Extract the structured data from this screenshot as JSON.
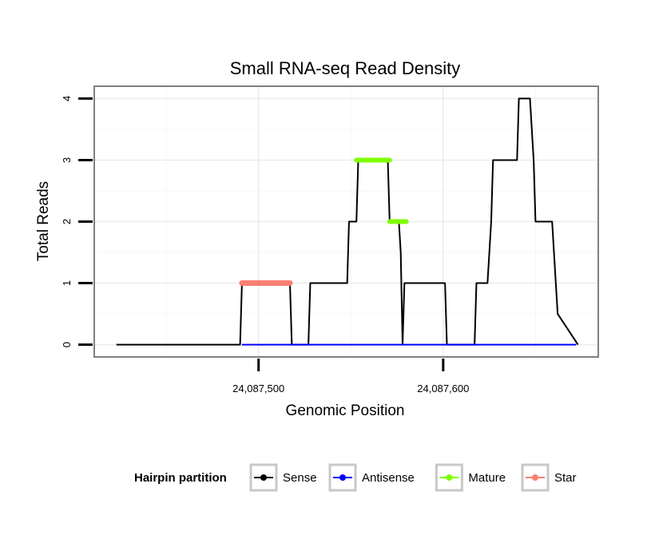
{
  "chart_data": {
    "type": "line",
    "title": "Small RNA-seq Read Density",
    "xlabel": "Genomic Position",
    "ylabel": "Total Reads",
    "xlim": [
      24087411,
      24087684
    ],
    "ylim": [
      -0.2,
      4.2
    ],
    "x_ticks": [
      24087500,
      24087600
    ],
    "x_tick_labels": [
      "24,087,500",
      "24,087,600"
    ],
    "y_ticks": [
      0,
      1,
      2,
      3,
      4
    ],
    "y_tick_labels": [
      "0",
      "1",
      "2",
      "3",
      "4"
    ],
    "grid": true,
    "legend": {
      "title": "Hairpin partition",
      "position": "bottom",
      "entries": [
        {
          "name": "Sense",
          "color": "#000000"
        },
        {
          "name": "Antisense",
          "color": "#0000ff"
        },
        {
          "name": "Mature",
          "color": "#7fff00"
        },
        {
          "name": "Star",
          "color": "#fa8072"
        }
      ]
    },
    "series": [
      {
        "name": "Sense",
        "color": "#000000",
        "width": 2,
        "x": [
          24087423,
          24087490,
          24087491,
          24087517,
          24087518,
          24087527,
          24087528,
          24087548,
          24087549,
          24087553,
          24087554,
          24087570,
          24087571,
          24087576,
          24087577,
          24087578,
          24087579,
          24087601,
          24087602,
          24087617,
          24087618,
          24087624,
          24087625,
          24087626,
          24087627,
          24087640,
          24087641,
          24087647,
          24087648,
          24087649,
          24087650,
          24087659,
          24087660,
          24087661,
          24087662,
          24087673
        ],
        "y": [
          0,
          0,
          1,
          1,
          0,
          0,
          1,
          1,
          2,
          2,
          3,
          3,
          2,
          2,
          1.5,
          0,
          1,
          1,
          0,
          0,
          1,
          1,
          1.5,
          2,
          3,
          3,
          4,
          4,
          3.5,
          3,
          2,
          2,
          1.5,
          1,
          0.5,
          0
        ]
      },
      {
        "name": "Antisense",
        "color": "#0000ff",
        "width": 2,
        "x": [
          24087491,
          24087672
        ],
        "y": [
          0,
          0
        ]
      },
      {
        "name": "Mature",
        "color": "#7fff00",
        "width": 6,
        "segments": [
          {
            "x": [
              24087553,
              24087571
            ],
            "y": [
              3,
              3
            ]
          },
          {
            "x": [
              24087571,
              24087580
            ],
            "y": [
              2,
              2
            ]
          }
        ]
      },
      {
        "name": "Star",
        "color": "#fa8072",
        "width": 7,
        "segments": [
          {
            "x": [
              24087491,
              24087517
            ],
            "y": [
              1,
              1
            ]
          }
        ]
      }
    ]
  }
}
